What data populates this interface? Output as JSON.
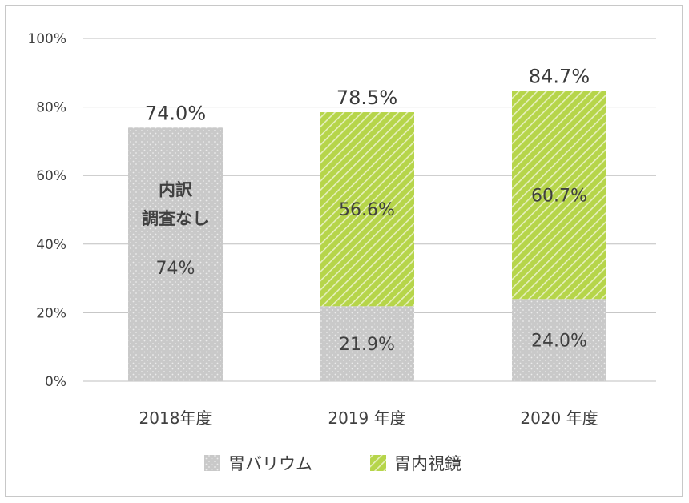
{
  "chart_data": {
    "type": "bar",
    "stacked": true,
    "categories": [
      "2018年度",
      "2019 年度",
      "2020 年度"
    ],
    "series": [
      {
        "name": "胃バリウム",
        "values": [
          74.0,
          21.9,
          24.0
        ],
        "pattern": "dots",
        "color": "#c9c9c9"
      },
      {
        "name": "胃内視鏡",
        "values": [
          0,
          56.6,
          60.7
        ],
        "pattern": "stripes",
        "color": "#b6d54a"
      }
    ],
    "totals": [
      74.0,
      78.5,
      84.7
    ],
    "total_labels": [
      "74.0%",
      "78.5%",
      "84.7%"
    ],
    "segment_labels": [
      {
        "category_index": 0,
        "series_index": 0,
        "text": "74%"
      },
      {
        "category_index": 1,
        "series_index": 0,
        "text": "21.9%"
      },
      {
        "category_index": 2,
        "series_index": 0,
        "text": "24.0%"
      },
      {
        "category_index": 1,
        "series_index": 1,
        "text": "56.6%"
      },
      {
        "category_index": 2,
        "series_index": 1,
        "text": "60.7%"
      }
    ],
    "annotations": [
      {
        "category_index": 0,
        "lines": [
          "内訳",
          "調査なし"
        ]
      }
    ],
    "y_ticks": [
      0,
      20,
      40,
      60,
      80,
      100
    ],
    "y_tick_labels": [
      "0%",
      "20%",
      "40%",
      "60%",
      "80%",
      "100%"
    ],
    "ylim": [
      0,
      100
    ],
    "grid": true,
    "legend_position": "bottom"
  }
}
